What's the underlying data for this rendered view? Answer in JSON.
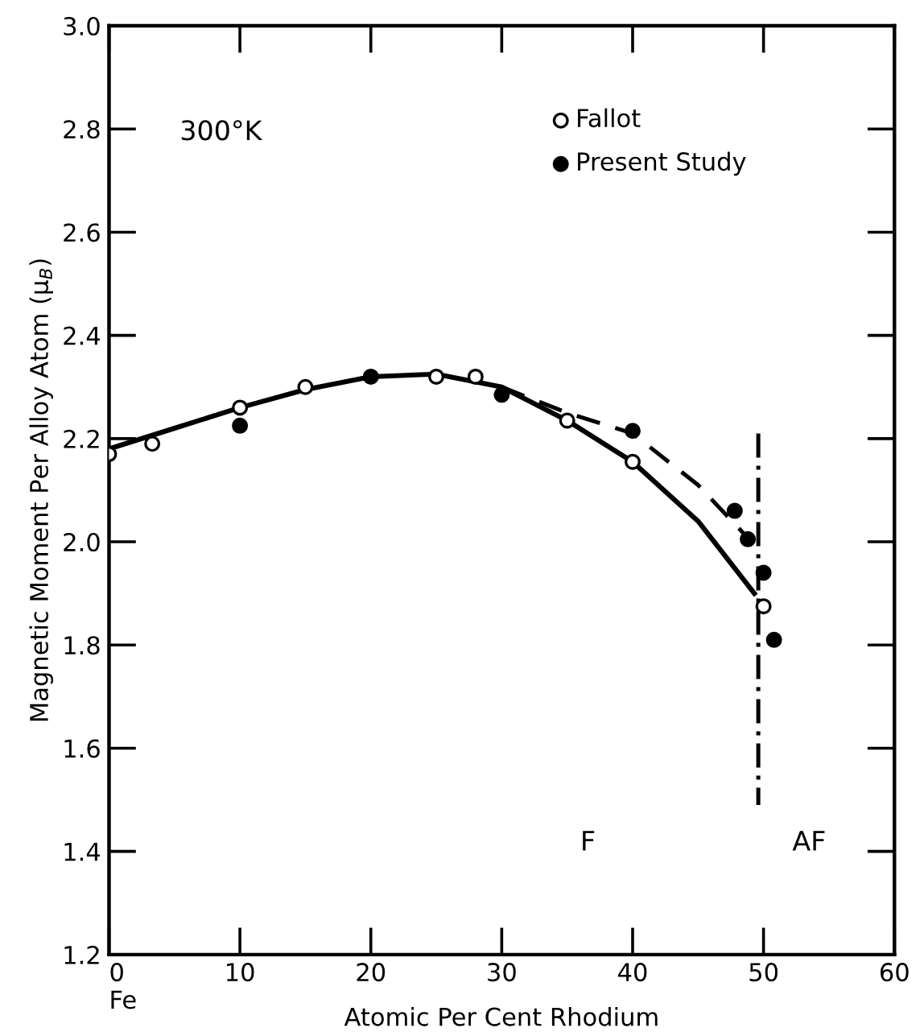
{
  "chart_data": {
    "type": "scatter",
    "xlabel": "Atomic Per Cent Rhodium",
    "ylabel": "Magnetic Moment Per Alloy Atom (μ$_{B}$)",
    "xlim": [
      0,
      60
    ],
    "ylim": [
      1.2,
      3.0
    ],
    "xticks": [
      {
        "value": 0,
        "label": "0\nFe"
      },
      10,
      20,
      30,
      40,
      50,
      60
    ],
    "yticks": [
      1.2,
      1.4,
      1.6,
      1.8,
      {
        "value": 2,
        "label": "2.0"
      },
      2.2,
      2.4,
      2.6,
      2.8,
      {
        "value": 3,
        "label": "3.0"
      }
    ],
    "grid": false,
    "legend": "top right",
    "annotations": [
      "300°K",
      "F",
      "AF"
    ],
    "series": [
      {
        "name": "Fallot",
        "marker": "circle",
        "color": "#ffffff",
        "x": [
          0,
          3.3,
          10,
          15,
          25,
          28,
          35,
          40,
          50
        ],
        "values": [
          2.17,
          2.19,
          2.26,
          2.3,
          2.32,
          2.32,
          2.235,
          2.155,
          1.875
        ]
      },
      {
        "name": "Present Study",
        "marker": "circle",
        "color": "#000000",
        "x": [
          10,
          20,
          30,
          40,
          47.8,
          48.8,
          50,
          50.8
        ],
        "values": [
          2.225,
          2.32,
          2.285,
          2.215,
          2.06,
          2.005,
          1.94,
          1.81
        ]
      },
      {
        "type": "line",
        "line_style": "solid",
        "color": "#000000",
        "x": [
          0,
          5,
          10,
          15,
          20,
          25,
          30,
          35,
          40,
          45,
          49.3
        ],
        "values": [
          2.18,
          2.22,
          2.26,
          2.295,
          2.32,
          2.325,
          2.3,
          2.235,
          2.155,
          2.04,
          1.9
        ]
      },
      {
        "type": "line",
        "line_style": "dashed",
        "color": "#000000",
        "x": [
          30,
          35,
          40,
          45,
          48.9
        ],
        "values": [
          2.3,
          2.25,
          2.21,
          2.11,
          2.005
        ]
      },
      {
        "type": "line",
        "line_style": "dashdot",
        "color": "#000000",
        "x": [
          49.6,
          49.6
        ],
        "values": [
          2.21,
          1.49
        ]
      }
    ]
  }
}
